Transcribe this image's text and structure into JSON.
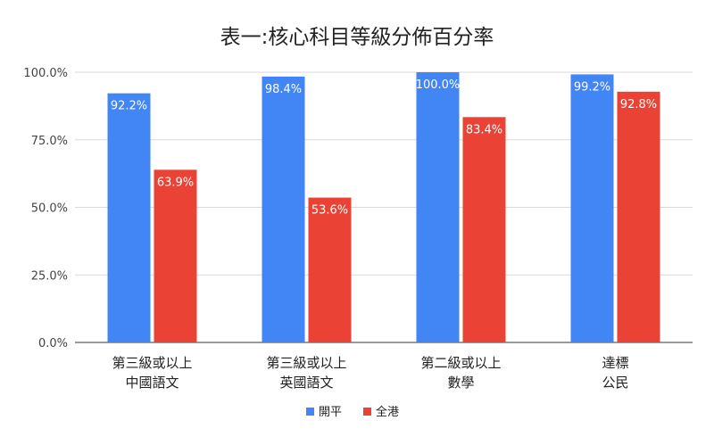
{
  "chart_data": {
    "type": "bar",
    "title": "表一:核心科目等級分佈百分率",
    "categories": [
      [
        "第三級或以上",
        "中國語文"
      ],
      [
        "第三級或以上",
        "英國語文"
      ],
      [
        "第二級或以上",
        "數學"
      ],
      [
        "達標",
        "公民"
      ]
    ],
    "series": [
      {
        "name": "開平",
        "color": "#4285f4",
        "values": [
          92.2,
          98.4,
          100.0,
          99.2
        ]
      },
      {
        "name": "全港",
        "color": "#ea4335",
        "values": [
          63.9,
          53.6,
          83.4,
          92.8
        ]
      }
    ],
    "ylim": [
      0,
      100
    ],
    "yticks": [
      "0.0%",
      "25.0%",
      "50.0%",
      "75.0%",
      "100.0%"
    ],
    "value_labels": [
      [
        "92.2%",
        "98.4%",
        "100.0%",
        "99.2%"
      ],
      [
        "63.9%",
        "53.6%",
        "83.4%",
        "92.8%"
      ]
    ],
    "legend_position": "bottom",
    "grid": true,
    "xlabel": "",
    "ylabel": ""
  }
}
